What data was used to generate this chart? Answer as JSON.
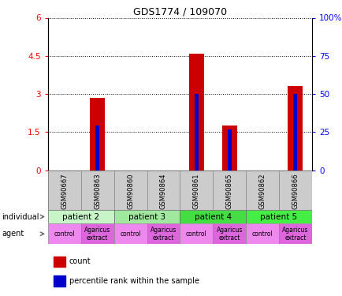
{
  "title": "GDS1774 / 109070",
  "samples": [
    "GSM90667",
    "GSM90863",
    "GSM90860",
    "GSM90864",
    "GSM90861",
    "GSM90865",
    "GSM90862",
    "GSM90866"
  ],
  "count_values": [
    0,
    2.85,
    0,
    0,
    4.6,
    1.75,
    0,
    3.3
  ],
  "percentile_values": [
    0,
    1.75,
    0,
    0,
    3.0,
    1.6,
    0,
    3.0
  ],
  "bar_color": "#cc0000",
  "percentile_color": "#0000cc",
  "ylim_left": [
    0,
    6
  ],
  "yticks_left": [
    0,
    1.5,
    3.0,
    4.5,
    6.0
  ],
  "ytick_labels_left": [
    "0",
    "1.5",
    "3",
    "4.5",
    "6"
  ],
  "yticks_right": [
    0,
    25,
    50,
    75,
    100
  ],
  "ytick_labels_right": [
    "0",
    "25",
    "50",
    "75",
    "100%"
  ],
  "individuals": [
    {
      "label": "patient 2",
      "span": [
        0,
        2
      ],
      "color": "#c8f5c8"
    },
    {
      "label": "patient 3",
      "span": [
        2,
        4
      ],
      "color": "#a0e8a0"
    },
    {
      "label": "patient 4",
      "span": [
        4,
        6
      ],
      "color": "#44dd44"
    },
    {
      "label": "patient 5",
      "span": [
        6,
        8
      ],
      "color": "#44ee44"
    }
  ],
  "agents": [
    {
      "label": "control",
      "span": [
        0,
        1
      ],
      "color": "#ee88ee"
    },
    {
      "label": "Agaricus\nextract",
      "span": [
        1,
        2
      ],
      "color": "#dd66dd"
    },
    {
      "label": "control",
      "span": [
        2,
        3
      ],
      "color": "#ee88ee"
    },
    {
      "label": "Agaricus\nextract",
      "span": [
        3,
        4
      ],
      "color": "#dd66dd"
    },
    {
      "label": "control",
      "span": [
        4,
        5
      ],
      "color": "#ee88ee"
    },
    {
      "label": "Agaricus\nextract",
      "span": [
        5,
        6
      ],
      "color": "#dd66dd"
    },
    {
      "label": "control",
      "span": [
        6,
        7
      ],
      "color": "#ee88ee"
    },
    {
      "label": "Agaricus\nextract",
      "span": [
        7,
        8
      ],
      "color": "#dd66dd"
    }
  ],
  "bar_width": 0.45,
  "pct_bar_width": 0.12
}
